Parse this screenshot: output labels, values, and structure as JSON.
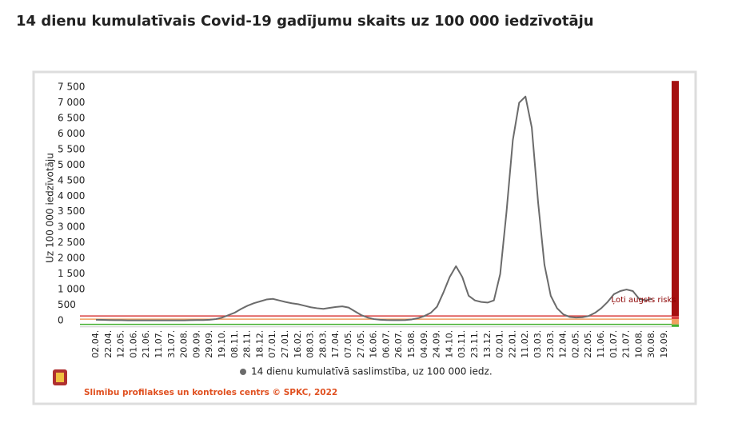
{
  "chart_data": {
    "type": "line",
    "title": "14 dienu kumulatīvais Covid-19 gadījumu skaits uz 100 000 iedzīvotāju",
    "y_label": "Uz 100 000 iedzīvotāju",
    "source": "Slimību profilakses un kontroles centrs © SPKC, 2022",
    "annotation": "Ļoti augsts risks",
    "categories": [
      "02.04.",
      null,
      "22.04.",
      null,
      "12.05.",
      null,
      "01.06.",
      null,
      "21.06.",
      null,
      "11.07.",
      null,
      "31.07.",
      null,
      "20.08.",
      null,
      "09.09.",
      null,
      "29.09.",
      null,
      "19.10.",
      null,
      "08.11.",
      null,
      "28.11.",
      null,
      "18.12.",
      null,
      "07.01.",
      null,
      "27.01.",
      null,
      "16.02.",
      null,
      "08.03.",
      null,
      "28.03.",
      null,
      "17.04.",
      null,
      "07.05.",
      null,
      "27.05.",
      null,
      "16.06.",
      null,
      "06.07.",
      null,
      "26.07.",
      null,
      "15.08.",
      null,
      "04.09.",
      null,
      "24.09.",
      null,
      "14.10.",
      null,
      "03.11.",
      null,
      "23.11.",
      null,
      "13.12.",
      null,
      "02.01.",
      null,
      "22.01.",
      null,
      "11.02.",
      null,
      "03.03.",
      null,
      "23.03.",
      null,
      "12.04.",
      null,
      "02.05.",
      null,
      "22.05.",
      null,
      "11.06.",
      null,
      "01.07.",
      null,
      "21.07.",
      null,
      "10.08.",
      null,
      "30.08.",
      null,
      "19.09."
    ],
    "series": [
      {
        "name": "14 dienu kumulatīvā saslimstība, uz 100 000 iedz.",
        "color": "#6b6b6b",
        "values": [
          30,
          25,
          20,
          15,
          15,
          10,
          10,
          10,
          10,
          10,
          10,
          10,
          10,
          10,
          10,
          15,
          20,
          20,
          30,
          50,
          100,
          180,
          260,
          380,
          480,
          560,
          620,
          680,
          700,
          650,
          600,
          560,
          530,
          480,
          430,
          400,
          380,
          410,
          440,
          460,
          420,
          300,
          180,
          100,
          50,
          30,
          20,
          15,
          15,
          20,
          40,
          80,
          150,
          250,
          450,
          900,
          1400,
          1750,
          1400,
          800,
          650,
          600,
          580,
          650,
          1500,
          3500,
          5800,
          7000,
          7200,
          6200,
          3800,
          1800,
          800,
          400,
          200,
          120,
          100,
          110,
          150,
          250,
          400,
          600,
          850,
          950,
          1000,
          950,
          700,
          650,
          700,
          null,
          null
        ]
      }
    ],
    "thresholds": [
      {
        "value": 150,
        "color": "#d94040"
      },
      {
        "value": 50,
        "color": "#f0a060"
      },
      {
        "value": -120,
        "color": "#44b030"
      }
    ],
    "ylim": [
      -200,
      7700
    ],
    "yticks": [
      0,
      500,
      {
        "value": 1000,
        "label": "1 000"
      },
      {
        "value": 1500,
        "label": "1 500"
      },
      {
        "value": 2000,
        "label": "2 000"
      },
      {
        "value": 2500,
        "label": "2 500"
      },
      {
        "value": 3000,
        "label": "3 000"
      },
      {
        "value": 3500,
        "label": "3 500"
      },
      {
        "value": 4000,
        "label": "4 000"
      },
      {
        "value": 4500,
        "label": "4 500"
      },
      {
        "value": 5000,
        "label": "5 000"
      },
      {
        "value": 5500,
        "label": "5 500"
      },
      {
        "value": 6000,
        "label": "6 000"
      },
      {
        "value": 6500,
        "label": "6 500"
      },
      {
        "value": 7000,
        "label": "7 000"
      },
      {
        "value": 7500,
        "label": "7 500"
      }
    ],
    "grid": false,
    "legend": "bottom"
  }
}
